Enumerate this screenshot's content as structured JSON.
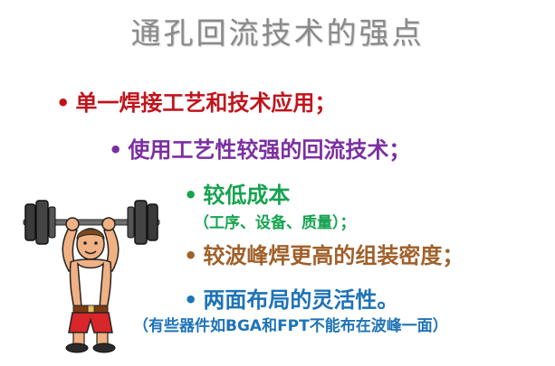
{
  "slide": {
    "title": "通孔回流技术的强点",
    "bullets": [
      {
        "marker": "•",
        "text": "单一焊接工艺和技术应用；"
      },
      {
        "marker": "•",
        "text": "使用工艺性较强的回流技术；"
      },
      {
        "marker": "•",
        "text": "较低成本",
        "sub": "（工序、设备、质量）；"
      },
      {
        "marker": "•",
        "text": "较波峰焊更高的组装密度；"
      },
      {
        "marker": "•",
        "text": "两面布局的灵活性。",
        "sub": "（有些器件如BGA和FPT不能布在波峰一面）"
      }
    ]
  },
  "colors": {
    "title": "#8a8a8a",
    "bullet1": "#c0141c",
    "bullet2": "#7b2fa1",
    "bullet3": "#16a350",
    "bullet4": "#a0602a",
    "bullet5": "#1d73b8"
  },
  "illustration": {
    "icon": "weightlifter-icon"
  }
}
